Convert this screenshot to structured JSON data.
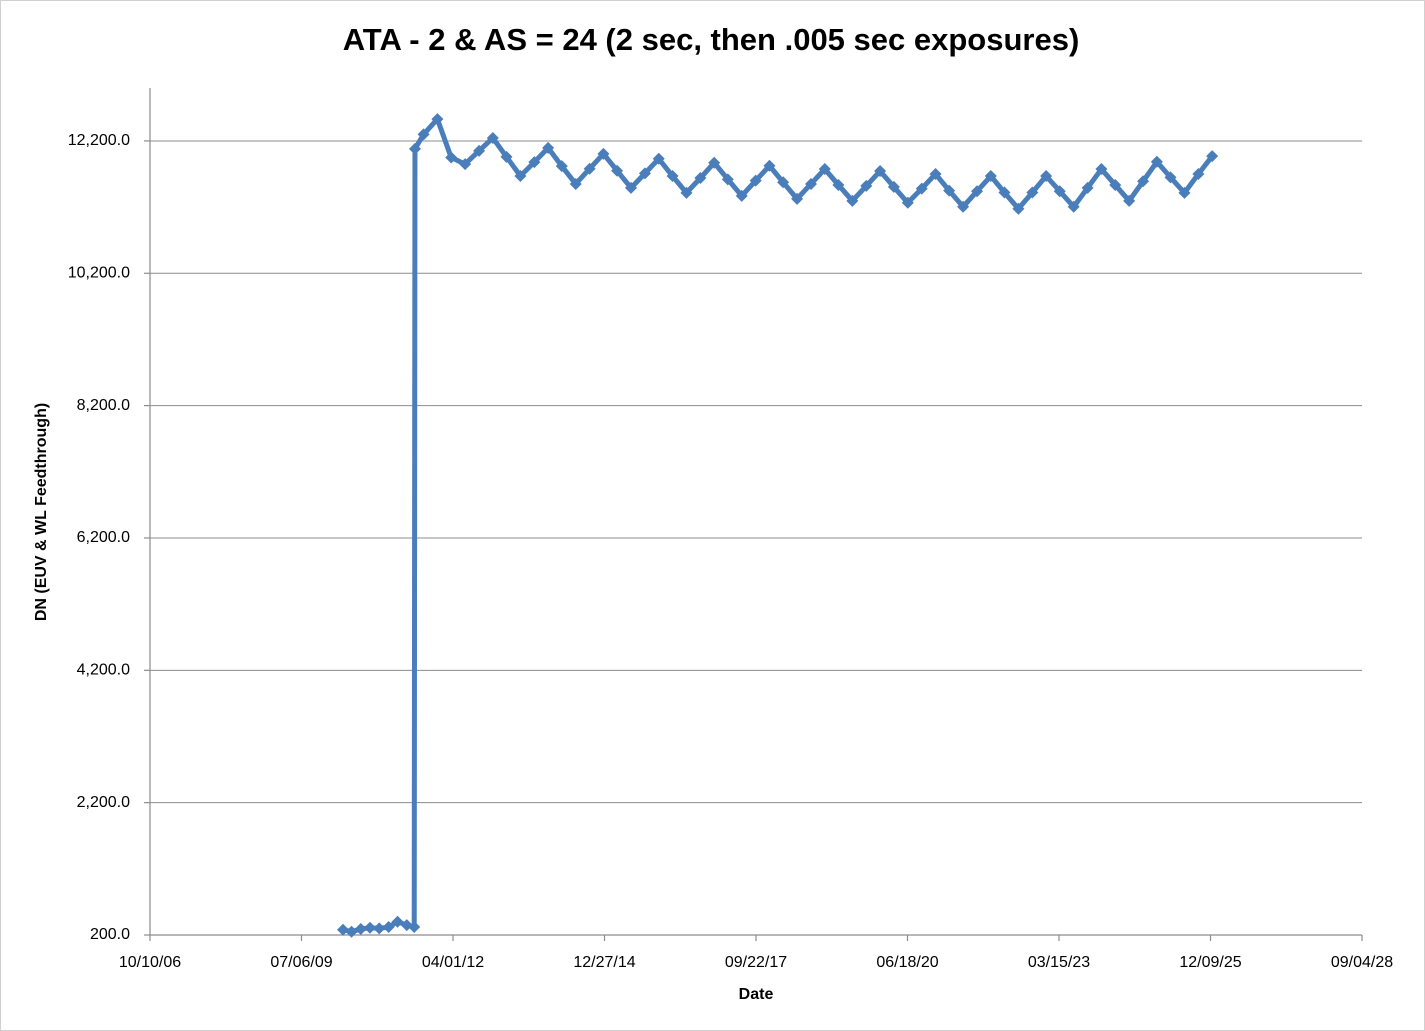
{
  "chart_data": {
    "type": "line",
    "title": "ATA - 2  &  AS = 24  (2 sec, then .005 sec exposures)",
    "xlabel": "Date",
    "ylabel": "DN (EUV & WL Feedthrough)",
    "xlim": [
      "10/10/06",
      "09/04/28"
    ],
    "xticks": [
      "10/10/06",
      "07/06/09",
      "04/01/12",
      "12/27/14",
      "09/22/17",
      "06/18/20",
      "03/15/23",
      "12/09/25",
      "09/04/28"
    ],
    "ylim": [
      200,
      13000
    ],
    "yticks": [
      {
        "value": 200,
        "label": "200.0"
      },
      {
        "value": 2200,
        "label": "2,200.0"
      },
      {
        "value": 4200,
        "label": "4,200.0"
      },
      {
        "value": 6200,
        "label": "6,200.0"
      },
      {
        "value": 8200,
        "label": "8,200.0"
      },
      {
        "value": 10200,
        "label": "10,200.0"
      },
      {
        "value": 12200,
        "label": "12,200.0"
      }
    ],
    "grid": true,
    "x": [
      "04/06/10",
      "06/01/10",
      "08/01/10",
      "10/01/10",
      "12/01/10",
      "02/01/11",
      "04/01/11",
      "06/01/11",
      "07/20/11",
      "07/25/11",
      "09/20/11",
      "12/20/11",
      "03/20/12",
      "06/20/12",
      "09/20/12",
      "12/20/12",
      "03/20/13",
      "06/20/13",
      "09/20/13",
      "12/20/13",
      "03/20/14",
      "06/20/14",
      "09/20/14",
      "12/20/14",
      "03/20/15",
      "06/20/15",
      "09/20/15",
      "12/20/15",
      "03/20/16",
      "06/20/16",
      "09/20/16",
      "12/20/16",
      "03/20/17",
      "06/20/17",
      "09/20/17",
      "12/20/17",
      "03/20/18",
      "06/20/18",
      "09/20/18",
      "12/20/18",
      "03/20/19",
      "06/20/19",
      "09/20/19",
      "12/20/19",
      "03/20/20",
      "06/20/20",
      "09/20/20",
      "12/20/20",
      "03/20/21",
      "06/20/21",
      "09/20/21",
      "12/20/21",
      "03/20/22",
      "06/20/22",
      "09/20/22",
      "12/20/22",
      "03/20/23",
      "06/20/23",
      "09/20/23",
      "12/20/23",
      "03/20/24",
      "06/20/24",
      "09/20/24",
      "12/20/24",
      "03/20/25",
      "06/20/25",
      "09/20/25",
      "12/20/25"
    ],
    "series": [
      {
        "name": "DN",
        "color": "#4a7ebb",
        "values": [
          280,
          250,
          290,
          310,
          300,
          320,
          400,
          350,
          320,
          12080,
          12300,
          12530,
          11950,
          11850,
          12050,
          12245,
          11960,
          11670,
          11880,
          12095,
          11820,
          11550,
          11780,
          12005,
          11750,
          11490,
          11710,
          11930,
          11670,
          11415,
          11640,
          11870,
          11620,
          11370,
          11600,
          11825,
          11575,
          11325,
          11550,
          11775,
          11535,
          11295,
          11520,
          11745,
          11505,
          11265,
          11480,
          11700,
          11450,
          11205,
          11440,
          11670,
          11420,
          11175,
          11420,
          11670,
          11440,
          11205,
          11490,
          11775,
          11535,
          11295,
          11590,
          11885,
          11650,
          11415,
          11700,
          11970
        ]
      }
    ]
  }
}
